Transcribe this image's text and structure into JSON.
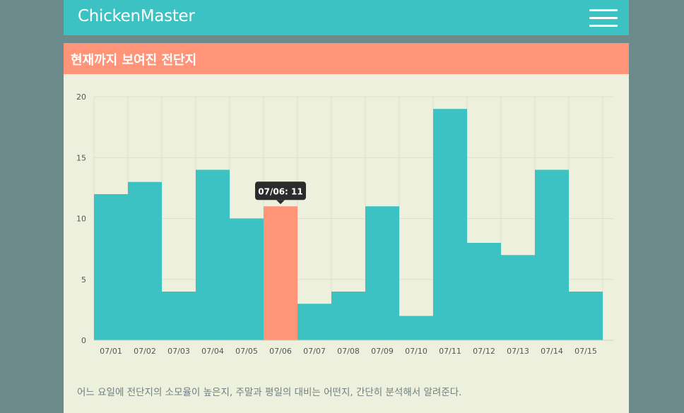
{
  "navbar": {
    "brand": "ChickenMaster",
    "menu_icon": "hamburger-icon"
  },
  "panel": {
    "title": "현재까지 보여진 전단지",
    "description": "어느 요일에 전단지의 소모율이 높은지, 주말과 평일의 대비는 어떤지, 간단히 분석해서 알려준다."
  },
  "colors": {
    "navbar": "#3cc2c2",
    "panel_header": "#ff9478",
    "bar": "#3cc2c2",
    "bar_highlight": "#ff9478",
    "panel_bg": "#eef0de",
    "page_bg": "#6b8a89"
  },
  "chart_data": {
    "type": "bar",
    "categories": [
      "07/01",
      "07/02",
      "07/03",
      "07/04",
      "07/05",
      "07/06",
      "07/07",
      "07/08",
      "07/09",
      "07/10",
      "07/11",
      "07/12",
      "07/13",
      "07/14",
      "07/15"
    ],
    "values": [
      12,
      13,
      4,
      14,
      10,
      11,
      3,
      4,
      11,
      2,
      19,
      8,
      7,
      14,
      4
    ],
    "ylim": [
      0,
      20
    ],
    "yticks": [
      0,
      5,
      10,
      15,
      20
    ],
    "grid": true,
    "highlight_index": 5,
    "tooltip": "07/06: 11"
  }
}
